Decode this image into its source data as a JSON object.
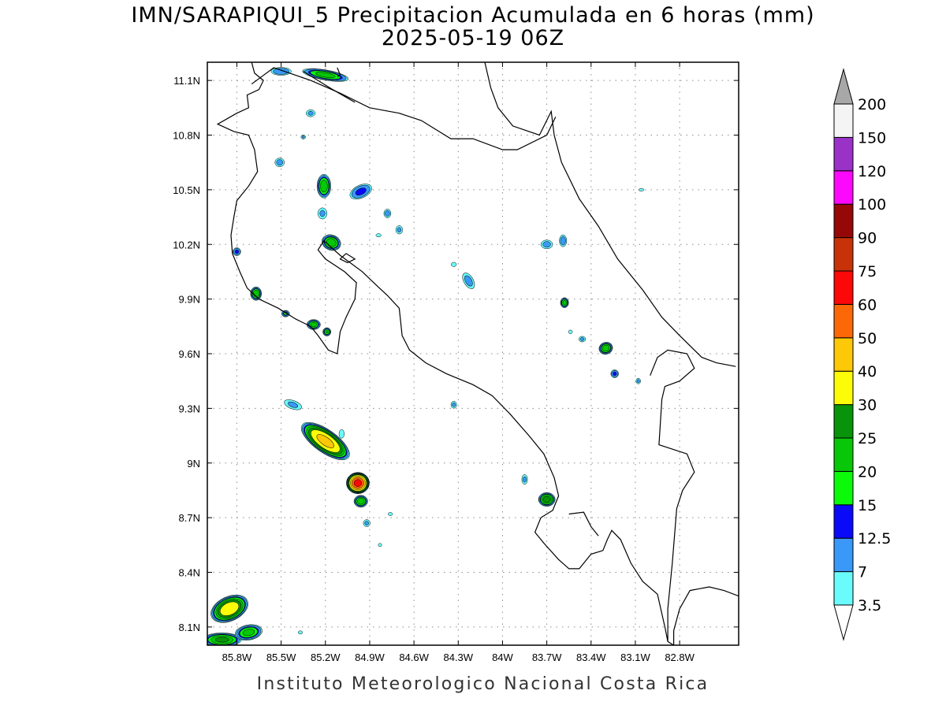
{
  "title": "IMN/SARAPIQUI_5 Precipitacion Acumulada en 6 horas (mm)",
  "subtitle": "2025-05-19 06Z",
  "footer": "Instituto Meteorologico Nacional Costa Rica",
  "map": {
    "lon_range": [
      -86.0,
      -82.4
    ],
    "lat_range": [
      8.0,
      11.2
    ],
    "lon_ticks": [
      {
        "value": -85.8,
        "label": "85.8W"
      },
      {
        "value": -85.5,
        "label": "85.5W"
      },
      {
        "value": -85.2,
        "label": "85.2W"
      },
      {
        "value": -84.9,
        "label": "84.9W"
      },
      {
        "value": -84.6,
        "label": "84.6W"
      },
      {
        "value": -84.3,
        "label": "84.3W"
      },
      {
        "value": -84.0,
        "label": "84W"
      },
      {
        "value": -83.7,
        "label": "83.7W"
      },
      {
        "value": -83.4,
        "label": "83.4W"
      },
      {
        "value": -83.1,
        "label": "83.1W"
      },
      {
        "value": -82.8,
        "label": "82.8W"
      }
    ],
    "lat_ticks": [
      {
        "value": 8.1,
        "label": "8.1N"
      },
      {
        "value": 8.4,
        "label": "8.4N"
      },
      {
        "value": 8.7,
        "label": "8.7N"
      },
      {
        "value": 9.0,
        "label": "9N"
      },
      {
        "value": 9.3,
        "label": "9.3N"
      },
      {
        "value": 9.6,
        "label": "9.6N"
      },
      {
        "value": 9.9,
        "label": "9.9N"
      },
      {
        "value": 10.2,
        "label": "10.2N"
      },
      {
        "value": 10.5,
        "label": "10.5N"
      },
      {
        "value": 10.8,
        "label": "10.8N"
      },
      {
        "value": 11.1,
        "label": "11.1N"
      }
    ],
    "grid": true,
    "colorbar": {
      "levels": [
        "3.5",
        "7",
        "12.5",
        "15",
        "20",
        "25",
        "30",
        "40",
        "50",
        "60",
        "75",
        "90",
        "100",
        "120",
        "150",
        "200"
      ],
      "colors": [
        "#6afcfc",
        "#3a98f8",
        "#0a0af8",
        "#0afa0a",
        "#08c608",
        "#08940a",
        "#fcfc08",
        "#fcc808",
        "#fc6808",
        "#fc0808",
        "#c83208",
        "#960808",
        "#fc08fc",
        "#9a32c8",
        "#f4f4f4"
      ],
      "over_color": "#a8a8a8",
      "under_color": "#ffffff"
    },
    "precip_cells": [
      {
        "lon": -85.2,
        "lat": 11.13,
        "rx": 0.17,
        "ry": 0.03,
        "rot": 10,
        "max": 22
      },
      {
        "lon": -85.5,
        "lat": 11.15,
        "rx": 0.08,
        "ry": 0.025,
        "rot": 0,
        "max": 12
      },
      {
        "lon": -85.3,
        "lat": 10.92,
        "rx": 0.04,
        "ry": 0.025,
        "rot": 0,
        "max": 8
      },
      {
        "lon": -85.35,
        "lat": 10.79,
        "rx": 0.02,
        "ry": 0.015,
        "rot": 0,
        "max": 8
      },
      {
        "lon": -85.51,
        "lat": 10.65,
        "rx": 0.04,
        "ry": 0.03,
        "rot": 0,
        "max": 9
      },
      {
        "lon": -85.21,
        "lat": 10.52,
        "rx": 0.05,
        "ry": 0.07,
        "rot": 0,
        "max": 24
      },
      {
        "lon": -85.22,
        "lat": 10.37,
        "rx": 0.04,
        "ry": 0.04,
        "rot": 0,
        "max": 8
      },
      {
        "lon": -84.96,
        "lat": 10.49,
        "rx": 0.09,
        "ry": 0.04,
        "rot": -25,
        "max": 14
      },
      {
        "lon": -84.78,
        "lat": 10.37,
        "rx": 0.03,
        "ry": 0.03,
        "rot": 0,
        "max": 9
      },
      {
        "lon": -84.7,
        "lat": 10.28,
        "rx": 0.03,
        "ry": 0.03,
        "rot": 0,
        "max": 8
      },
      {
        "lon": -84.84,
        "lat": 10.25,
        "rx": 0.03,
        "ry": 0.015,
        "rot": 0,
        "max": 5
      },
      {
        "lon": -85.16,
        "lat": 10.21,
        "rx": 0.07,
        "ry": 0.045,
        "rot": 20,
        "max": 24
      },
      {
        "lon": -85.8,
        "lat": 10.16,
        "rx": 0.03,
        "ry": 0.025,
        "rot": 0,
        "max": 14
      },
      {
        "lon": -85.67,
        "lat": 9.93,
        "rx": 0.04,
        "ry": 0.04,
        "rot": 0,
        "max": 24
      },
      {
        "lon": -85.47,
        "lat": 9.82,
        "rx": 0.03,
        "ry": 0.02,
        "rot": 0,
        "max": 16
      },
      {
        "lon": -85.28,
        "lat": 9.76,
        "rx": 0.05,
        "ry": 0.03,
        "rot": 0,
        "max": 22
      },
      {
        "lon": -85.19,
        "lat": 9.72,
        "rx": 0.03,
        "ry": 0.025,
        "rot": 0,
        "max": 20
      },
      {
        "lon": -84.33,
        "lat": 10.09,
        "rx": 0.03,
        "ry": 0.02,
        "rot": 0,
        "max": 5
      },
      {
        "lon": -84.23,
        "lat": 10.0,
        "rx": 0.04,
        "ry": 0.06,
        "rot": -30,
        "max": 9
      },
      {
        "lon": -83.7,
        "lat": 10.2,
        "rx": 0.05,
        "ry": 0.03,
        "rot": 0,
        "max": 9
      },
      {
        "lon": -83.59,
        "lat": 10.22,
        "rx": 0.03,
        "ry": 0.04,
        "rot": 0,
        "max": 10
      },
      {
        "lon": -83.58,
        "lat": 9.88,
        "rx": 0.03,
        "ry": 0.03,
        "rot": 0,
        "max": 22
      },
      {
        "lon": -83.54,
        "lat": 9.72,
        "rx": 0.02,
        "ry": 0.015,
        "rot": 0,
        "max": 6
      },
      {
        "lon": -83.46,
        "lat": 9.68,
        "rx": 0.03,
        "ry": 0.02,
        "rot": 0,
        "max": 8
      },
      {
        "lon": -83.3,
        "lat": 9.63,
        "rx": 0.05,
        "ry": 0.035,
        "rot": -20,
        "max": 24
      },
      {
        "lon": -83.24,
        "lat": 9.49,
        "rx": 0.03,
        "ry": 0.025,
        "rot": 0,
        "max": 14
      },
      {
        "lon": -83.08,
        "lat": 9.45,
        "rx": 0.02,
        "ry": 0.02,
        "rot": 0,
        "max": 8
      },
      {
        "lon": -83.06,
        "lat": 10.5,
        "rx": 0.03,
        "ry": 0.012,
        "rot": 0,
        "max": 5
      },
      {
        "lon": -84.33,
        "lat": 9.32,
        "rx": 0.025,
        "ry": 0.025,
        "rot": 0,
        "max": 8
      },
      {
        "lon": -85.2,
        "lat": 9.12,
        "rx": 0.2,
        "ry": 0.065,
        "rot": 35,
        "max": 42
      },
      {
        "lon": -85.42,
        "lat": 9.32,
        "rx": 0.08,
        "ry": 0.03,
        "rot": 20,
        "max": 8
      },
      {
        "lon": -84.98,
        "lat": 8.89,
        "rx": 0.08,
        "ry": 0.06,
        "rot": 0,
        "max": 62
      },
      {
        "lon": -84.96,
        "lat": 8.79,
        "rx": 0.05,
        "ry": 0.035,
        "rot": 0,
        "max": 24
      },
      {
        "lon": -84.92,
        "lat": 8.67,
        "rx": 0.03,
        "ry": 0.025,
        "rot": 0,
        "max": 8
      },
      {
        "lon": -84.76,
        "lat": 8.72,
        "rx": 0.025,
        "ry": 0.015,
        "rot": 0,
        "max": 5
      },
      {
        "lon": -84.83,
        "lat": 8.55,
        "rx": 0.02,
        "ry": 0.015,
        "rot": 0,
        "max": 5
      },
      {
        "lon": -85.09,
        "lat": 9.16,
        "rx": 0.03,
        "ry": 0.04,
        "rot": 0,
        "max": 5
      },
      {
        "lon": -83.7,
        "lat": 8.8,
        "rx": 0.06,
        "ry": 0.04,
        "rot": 0,
        "max": 28
      },
      {
        "lon": -83.85,
        "lat": 8.91,
        "rx": 0.025,
        "ry": 0.035,
        "rot": 0,
        "max": 8
      },
      {
        "lon": -85.85,
        "lat": 8.2,
        "rx": 0.14,
        "ry": 0.07,
        "rot": -25,
        "max": 36
      },
      {
        "lon": -85.9,
        "lat": 8.03,
        "rx": 0.14,
        "ry": 0.04,
        "rot": 0,
        "max": 26
      },
      {
        "lon": -85.72,
        "lat": 8.07,
        "rx": 0.1,
        "ry": 0.045,
        "rot": -10,
        "max": 22
      },
      {
        "lon": -85.37,
        "lat": 8.07,
        "rx": 0.025,
        "ry": 0.015,
        "rot": 0,
        "max": 5
      }
    ]
  }
}
